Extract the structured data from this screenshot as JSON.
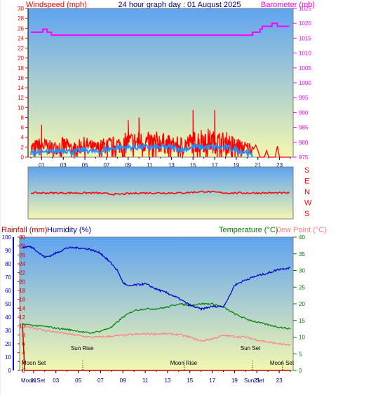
{
  "header": {
    "left_label": "Windspeed (mph)",
    "center_title": "24 hour graph day : 01 August 2025",
    "right_label": "Barometer (mb)"
  },
  "colors": {
    "wind_label": "#ff0000",
    "baro_label": "#ff00ff",
    "title": "#000080",
    "wind_gust": "#ff0000",
    "wind_avg": "#1e90ff",
    "barometer": "#ff00ff",
    "direction": "#ff0000",
    "humidity": "#0000cc",
    "temperature": "#008000",
    "dewpoint": "#ff7f7f",
    "rain": "#cc0000",
    "sky_top": "#5fa3f0",
    "sky_bottom": "#f4f7b0"
  },
  "compass": [
    "S",
    "E",
    "N",
    "W",
    "S"
  ],
  "bottom_header": {
    "rain_label": "Rainfall (mm)",
    "hum_label": "Humidity (%)",
    "temp_label": "Temperature (°C)",
    "dew_label": "Dew Point (°C)"
  },
  "events": {
    "sun_rise": "Sun Rise",
    "sun_set": "Sun Set",
    "moon_rise": "Moon Rise",
    "moon_set_left": "Moon Set",
    "moon_set_right": "Moon Set"
  },
  "bottom_axis_markers": {
    "moon_set": "Moon Set",
    "sun_set": "Sun Set"
  },
  "chart_data": [
    {
      "type": "line",
      "title": "24 hour graph day : 01 August 2025",
      "x_ticks": [
        "01",
        "03",
        "05",
        "07",
        "09",
        "11",
        "13",
        "15",
        "17",
        "19",
        "21",
        "23"
      ],
      "y_left_label": "Windspeed (mph)",
      "y_left_ticks": [
        0,
        2,
        4,
        6,
        8,
        10,
        12,
        14,
        16,
        18,
        20,
        22,
        24,
        26,
        28,
        30
      ],
      "ylim_left": [
        0,
        30
      ],
      "y_right_label": "Barometer (mb)",
      "y_right_ticks": [
        975,
        980,
        985,
        990,
        995,
        1000,
        1005,
        1010,
        1015,
        1020,
        1025
      ],
      "ylim_right": [
        975,
        1025
      ],
      "series": [
        {
          "name": "Windspeed (mph)",
          "hours": [
            0,
            1,
            2,
            3,
            4,
            5,
            6,
            7,
            8,
            9,
            10,
            11,
            12,
            13,
            14,
            15,
            16,
            17,
            18,
            19,
            20,
            20.5,
            21,
            22,
            23,
            24
          ],
          "values": [
            3,
            4,
            3,
            4,
            3,
            4,
            3,
            4,
            4,
            5,
            5,
            5,
            5,
            4,
            4,
            5,
            6,
            5,
            5,
            4,
            3,
            3,
            2,
            1,
            0.5,
            0
          ],
          "peaks": [
            [
              15,
              9.5
            ],
            [
              17,
              9.5
            ],
            [
              10,
              8
            ],
            [
              9,
              7.5
            ],
            [
              1,
              6.5
            ]
          ]
        },
        {
          "name": "Average wind",
          "hours": [
            0,
            1,
            2,
            3,
            4,
            5,
            6,
            7,
            8,
            9,
            10,
            11,
            12,
            13,
            14,
            15,
            16,
            17,
            18,
            19,
            20,
            20.5,
            21,
            22,
            23,
            24
          ],
          "values": [
            1,
            1,
            1,
            1.5,
            1,
            1.5,
            1,
            1.5,
            2,
            2,
            2,
            2,
            2,
            2,
            1.5,
            2,
            2,
            2,
            2,
            1.5,
            1,
            0,
            0,
            0,
            0,
            0
          ]
        },
        {
          "name": "Barometer (mb)",
          "hours": [
            0,
            1,
            1.2,
            2,
            3,
            4,
            5,
            6,
            7,
            8,
            9,
            10,
            11,
            12,
            13,
            14,
            15,
            16,
            17,
            18,
            19,
            20,
            21,
            21.5,
            22,
            22.5,
            23,
            24
          ],
          "values": [
            1017,
            1017,
            1018,
            1016,
            1016,
            1016,
            1016,
            1016,
            1016,
            1016,
            1016,
            1016,
            1016,
            1016,
            1016,
            1016,
            1016,
            1016,
            1016,
            1016,
            1016,
            1016,
            1017,
            1019,
            1019,
            1020,
            1019,
            1019
          ]
        }
      ]
    },
    {
      "type": "line",
      "y_right_labels": [
        "S",
        "E",
        "N",
        "W",
        "S"
      ],
      "series": [
        {
          "name": "Wind direction",
          "hours": [
            0,
            2,
            4,
            6,
            8,
            10,
            12,
            14,
            16,
            18,
            20,
            22,
            24
          ],
          "values": [
            180,
            180,
            180,
            180,
            175,
            180,
            180,
            180,
            185,
            180,
            180,
            180,
            180
          ]
        }
      ]
    },
    {
      "type": "line",
      "x_ticks": [
        "01",
        "03",
        "05",
        "07",
        "09",
        "11",
        "13",
        "15",
        "17",
        "19",
        "21",
        "23"
      ],
      "y_left_label_rain": "Rainfall (mm)",
      "y_left_label_humidity": "Humidity (%)",
      "y_left_ticks_humidity": [
        0,
        10,
        20,
        30,
        40,
        50,
        60,
        70,
        80,
        90,
        100
      ],
      "ylim_humidity": [
        0,
        100
      ],
      "y_left_ticks_rain": [
        0,
        2,
        4,
        6,
        8,
        10,
        12,
        14,
        16,
        18,
        20,
        22,
        24,
        26,
        28,
        30
      ],
      "ylim_rain": [
        0,
        30
      ],
      "y_right_label": "Temperature (°C)",
      "y_right_label_2": "Dew Point (°C)",
      "y_right_ticks": [
        0,
        5,
        10,
        15,
        20,
        25,
        30,
        35,
        40
      ],
      "ylim_right": [
        0,
        40
      ],
      "events": [
        {
          "label": "Moon Set",
          "hour": 0.0
        },
        {
          "label": "Sun Rise",
          "hour": 5.4
        },
        {
          "label": "Moon Rise",
          "hour": 14.5
        },
        {
          "label": "Sun Set",
          "hour": 20.6
        },
        {
          "label": "Moon Set",
          "hour": 23.3
        }
      ],
      "series": [
        {
          "name": "Humidity (%)",
          "hours": [
            0,
            0.5,
            1,
            1.5,
            2,
            2.5,
            3,
            4,
            5,
            6,
            7,
            8,
            8.5,
            9,
            9.5,
            10,
            11,
            12,
            13,
            14,
            15,
            16,
            17,
            18,
            18.5,
            19,
            20,
            21,
            22,
            23,
            24
          ],
          "values": [
            92,
            93,
            92,
            88,
            85,
            86,
            88,
            92,
            92,
            91,
            88,
            80,
            75,
            66,
            63,
            64,
            65,
            61,
            58,
            54,
            49,
            46,
            48,
            48,
            55,
            64,
            68,
            71,
            73,
            76,
            77
          ]
        },
        {
          "name": "Temperature (°C)",
          "hours": [
            0,
            1,
            2,
            3,
            4,
            5,
            6,
            7,
            8,
            9,
            10,
            11,
            12,
            13,
            14,
            15,
            16,
            17,
            17.5,
            18,
            19,
            20,
            21,
            22,
            23,
            24
          ],
          "values": [
            14,
            13.5,
            13.2,
            12.7,
            12.3,
            11.8,
            11.2,
            11.8,
            13,
            16,
            18,
            18.5,
            18.5,
            19,
            20,
            19.5,
            20,
            20,
            19.5,
            19,
            17,
            15.5,
            14.5,
            13.7,
            13,
            12.5
          ]
        },
        {
          "name": "Dew Point (°C)",
          "hours": [
            0,
            1,
            2,
            3,
            4,
            5,
            6,
            7,
            8,
            9,
            10,
            11,
            12,
            13,
            14,
            15,
            16,
            17,
            18,
            19,
            20,
            21,
            22,
            23,
            24
          ],
          "values": [
            13.5,
            12.8,
            12,
            11.5,
            11,
            10.5,
            10,
            10,
            10.3,
            10.5,
            10.8,
            11,
            11,
            11,
            10.8,
            10,
            8.8,
            9.5,
            10.5,
            10.2,
            10,
            9.2,
            8.5,
            8,
            7.5
          ]
        },
        {
          "name": "Rainfall (mm)",
          "hours": [
            0,
            0.2,
            24
          ],
          "values": [
            10.5,
            0,
            0
          ]
        }
      ]
    }
  ]
}
